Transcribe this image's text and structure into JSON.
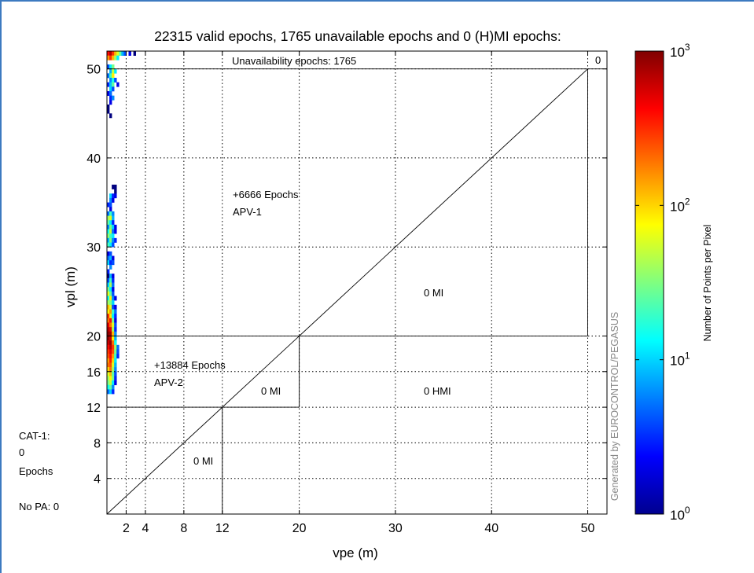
{
  "chart_data": {
    "type": "heatmap",
    "title": "22315 valid epochs, 1765 unavailable epochs and 0 (H)MI epochs:",
    "xlabel": "vpe (m)",
    "ylabel": "vpl (m)",
    "xlim": [
      0,
      52
    ],
    "ylim": [
      0,
      52
    ],
    "x_ticks": [
      2,
      4,
      8,
      12,
      20,
      30,
      40,
      50
    ],
    "y_ticks": [
      4,
      8,
      12,
      16,
      20,
      30,
      40,
      50
    ],
    "x_tick_labels": [
      "2",
      "4",
      "8",
      "12",
      "20",
      "30",
      "40",
      "50"
    ],
    "y_tick_labels": [
      "4",
      "8",
      "12",
      "16",
      "20",
      "30",
      "40",
      "50"
    ],
    "grid": true,
    "grid_style": "dotted",
    "colorbar": {
      "label": "Number of Points per Pixel",
      "scale": "log",
      "range": [
        1,
        1000
      ],
      "tick_values": [
        1,
        10,
        100,
        1000
      ],
      "tick_base": "10",
      "tick_exponents": [
        "0",
        "1",
        "2",
        "3"
      ],
      "colormap": "jet"
    },
    "annotations": {
      "unavailability": "Unavailability epochs: 1765",
      "unavailability_mi_count": "0",
      "apv1_epochs": "+6666 Epochs",
      "apv1_label": "APV-1",
      "apv2_epochs": "+13884 Epochs",
      "apv2_label": "APV-2",
      "mi_apv1": "0 MI",
      "mi_apv2": "0 MI",
      "hmi": "0 HMI",
      "mi_cat1": "0 MI",
      "cat1_label": "CAT-1:",
      "cat1_count": "0",
      "cat1_unit": "Epochs",
      "no_pa": "No PA: 0",
      "watermark": "Generated by EUROCONTROL/PEGASUS"
    },
    "region_boundaries": {
      "diagonal": [
        [
          0,
          0
        ],
        [
          50,
          50
        ]
      ],
      "horizontal_lines": [
        {
          "y": 50,
          "x_to": 52
        },
        {
          "y": 20,
          "x_to": 50
        },
        {
          "y": 12,
          "x_to": 20
        }
      ],
      "vertical_lines": [
        {
          "x": 50,
          "y_from": 20,
          "y_to": 50
        },
        {
          "x": 20,
          "y_from": 12,
          "y_to": 20
        },
        {
          "x": 12,
          "y_from": 0,
          "y_to": 12
        }
      ]
    },
    "heatmap_bin_size": [
      0.25,
      0.5
    ],
    "heatmap_cells": [
      {
        "x": 0.0,
        "y": 51.5,
        "v": 400
      },
      {
        "x": 0.25,
        "y": 51.5,
        "v": 700
      },
      {
        "x": 0.5,
        "y": 51.5,
        "v": 300
      },
      {
        "x": 0.75,
        "y": 51.5,
        "v": 120
      },
      {
        "x": 1.0,
        "y": 51.5,
        "v": 60
      },
      {
        "x": 1.25,
        "y": 51.5,
        "v": 25
      },
      {
        "x": 1.5,
        "y": 51.5,
        "v": 8
      },
      {
        "x": 1.75,
        "y": 51.5,
        "v": 4
      },
      {
        "x": 2.25,
        "y": 51.5,
        "v": 2
      },
      {
        "x": 2.75,
        "y": 51.5,
        "v": 1
      },
      {
        "x": 0.0,
        "y": 51.0,
        "v": 150
      },
      {
        "x": 0.25,
        "y": 51.0,
        "v": 300
      },
      {
        "x": 0.5,
        "y": 51.0,
        "v": 120
      },
      {
        "x": 0.75,
        "y": 51.0,
        "v": 40
      },
      {
        "x": 1.0,
        "y": 51.0,
        "v": 12
      },
      {
        "x": 0.0,
        "y": 50.0,
        "v": 4
      },
      {
        "x": 0.25,
        "y": 50.0,
        "v": 12
      },
      {
        "x": 0.5,
        "y": 50.0,
        "v": 30
      },
      {
        "x": 0.25,
        "y": 49.5,
        "v": 8
      },
      {
        "x": 0.5,
        "y": 49.5,
        "v": 50
      },
      {
        "x": 0.75,
        "y": 49.5,
        "v": 12
      },
      {
        "x": 0.0,
        "y": 49.0,
        "v": 5
      },
      {
        "x": 0.25,
        "y": 49.0,
        "v": 20
      },
      {
        "x": 0.5,
        "y": 49.0,
        "v": 80
      },
      {
        "x": 0.25,
        "y": 48.5,
        "v": 6
      },
      {
        "x": 0.5,
        "y": 48.5,
        "v": 15
      },
      {
        "x": 0.75,
        "y": 48.5,
        "v": 4
      },
      {
        "x": 0.0,
        "y": 48.0,
        "v": 3
      },
      {
        "x": 0.25,
        "y": 48.0,
        "v": 9
      },
      {
        "x": 0.5,
        "y": 48.0,
        "v": 25
      },
      {
        "x": 1.0,
        "y": 48.0,
        "v": 2
      },
      {
        "x": 0.25,
        "y": 47.5,
        "v": 10
      },
      {
        "x": 0.5,
        "y": 47.5,
        "v": 4
      },
      {
        "x": 0.0,
        "y": 47.0,
        "v": 2
      },
      {
        "x": 0.25,
        "y": 47.0,
        "v": 5
      },
      {
        "x": 0.25,
        "y": 46.5,
        "v": 3
      },
      {
        "x": 0.5,
        "y": 46.5,
        "v": 6
      },
      {
        "x": 0.25,
        "y": 46.0,
        "v": 2
      },
      {
        "x": 0.0,
        "y": 45.5,
        "v": 1
      },
      {
        "x": 0.0,
        "y": 45.0,
        "v": 1
      },
      {
        "x": 0.25,
        "y": 44.5,
        "v": 1
      },
      {
        "x": 0.5,
        "y": 36.5,
        "v": 1
      },
      {
        "x": 0.75,
        "y": 36.5,
        "v": 1
      },
      {
        "x": 0.75,
        "y": 36.0,
        "v": 1
      },
      {
        "x": 0.25,
        "y": 35.5,
        "v": 10
      },
      {
        "x": 0.5,
        "y": 35.5,
        "v": 3
      },
      {
        "x": 0.75,
        "y": 35.5,
        "v": 2
      },
      {
        "x": 0.25,
        "y": 35.0,
        "v": 6
      },
      {
        "x": 0.5,
        "y": 35.0,
        "v": 2
      },
      {
        "x": 0.0,
        "y": 34.5,
        "v": 3
      },
      {
        "x": 0.25,
        "y": 34.5,
        "v": 4
      },
      {
        "x": 0.25,
        "y": 34.0,
        "v": 2
      },
      {
        "x": 0.0,
        "y": 33.5,
        "v": 5
      },
      {
        "x": 0.25,
        "y": 33.5,
        "v": 20
      },
      {
        "x": 0.5,
        "y": 33.5,
        "v": 6
      },
      {
        "x": 0.0,
        "y": 33.0,
        "v": 40
      },
      {
        "x": 0.25,
        "y": 33.0,
        "v": 60
      },
      {
        "x": 0.5,
        "y": 33.0,
        "v": 8
      },
      {
        "x": 0.0,
        "y": 32.5,
        "v": 25
      },
      {
        "x": 0.25,
        "y": 32.5,
        "v": 12
      },
      {
        "x": 0.5,
        "y": 32.5,
        "v": 3
      },
      {
        "x": 0.0,
        "y": 32.0,
        "v": 6
      },
      {
        "x": 0.25,
        "y": 32.0,
        "v": 30
      },
      {
        "x": 0.5,
        "y": 32.0,
        "v": 10
      },
      {
        "x": 0.75,
        "y": 32.0,
        "v": 2
      },
      {
        "x": 0.0,
        "y": 31.5,
        "v": 15
      },
      {
        "x": 0.25,
        "y": 31.5,
        "v": 50
      },
      {
        "x": 0.5,
        "y": 31.5,
        "v": 5
      },
      {
        "x": 0.75,
        "y": 31.5,
        "v": 2
      },
      {
        "x": 0.0,
        "y": 31.0,
        "v": 35
      },
      {
        "x": 0.25,
        "y": 31.0,
        "v": 20
      },
      {
        "x": 0.5,
        "y": 31.0,
        "v": 12
      },
      {
        "x": 0.0,
        "y": 30.5,
        "v": 8
      },
      {
        "x": 0.25,
        "y": 30.5,
        "v": 30
      },
      {
        "x": 0.5,
        "y": 30.5,
        "v": 6
      },
      {
        "x": 0.75,
        "y": 30.5,
        "v": 3
      },
      {
        "x": 0.0,
        "y": 30.0,
        "v": 20
      },
      {
        "x": 0.25,
        "y": 30.0,
        "v": 12
      },
      {
        "x": 0.5,
        "y": 30.0,
        "v": 4
      },
      {
        "x": 0.0,
        "y": 29.0,
        "v": 2
      },
      {
        "x": 0.25,
        "y": 29.0,
        "v": 4
      },
      {
        "x": 0.0,
        "y": 28.5,
        "v": 5
      },
      {
        "x": 0.25,
        "y": 28.5,
        "v": 8
      },
      {
        "x": 0.5,
        "y": 28.5,
        "v": 2
      },
      {
        "x": 0.0,
        "y": 28.0,
        "v": 10
      },
      {
        "x": 0.25,
        "y": 28.0,
        "v": 3
      },
      {
        "x": 0.5,
        "y": 28.0,
        "v": 4
      },
      {
        "x": 0.25,
        "y": 27.5,
        "v": 6
      },
      {
        "x": 0.0,
        "y": 27.0,
        "v": 3
      },
      {
        "x": 0.0,
        "y": 26.5,
        "v": 1
      },
      {
        "x": 0.25,
        "y": 26.5,
        "v": 8
      },
      {
        "x": 0.5,
        "y": 26.5,
        "v": 2
      },
      {
        "x": 0.0,
        "y": 26.0,
        "v": 4
      },
      {
        "x": 0.25,
        "y": 26.0,
        "v": 20
      },
      {
        "x": 0.5,
        "y": 26.0,
        "v": 3
      },
      {
        "x": 0.0,
        "y": 25.5,
        "v": 10
      },
      {
        "x": 0.25,
        "y": 25.5,
        "v": 40
      },
      {
        "x": 0.5,
        "y": 25.5,
        "v": 5
      },
      {
        "x": 0.0,
        "y": 25.0,
        "v": 30
      },
      {
        "x": 0.25,
        "y": 25.0,
        "v": 12
      },
      {
        "x": 0.5,
        "y": 25.0,
        "v": 2
      },
      {
        "x": 0.0,
        "y": 24.5,
        "v": 60
      },
      {
        "x": 0.25,
        "y": 24.5,
        "v": 25
      },
      {
        "x": 0.5,
        "y": 24.5,
        "v": 4
      },
      {
        "x": 0.0,
        "y": 24.0,
        "v": 15
      },
      {
        "x": 0.25,
        "y": 24.0,
        "v": 80
      },
      {
        "x": 0.5,
        "y": 24.0,
        "v": 6
      },
      {
        "x": 0.75,
        "y": 24.0,
        "v": 2
      },
      {
        "x": 0.0,
        "y": 23.5,
        "v": 40
      },
      {
        "x": 0.25,
        "y": 23.5,
        "v": 30
      },
      {
        "x": 0.5,
        "y": 23.5,
        "v": 10
      },
      {
        "x": 0.0,
        "y": 23.0,
        "v": 120
      },
      {
        "x": 0.25,
        "y": 23.0,
        "v": 60
      },
      {
        "x": 0.5,
        "y": 23.0,
        "v": 4
      },
      {
        "x": 0.75,
        "y": 23.0,
        "v": 2
      },
      {
        "x": 0.0,
        "y": 22.5,
        "v": 80
      },
      {
        "x": 0.25,
        "y": 22.5,
        "v": 150
      },
      {
        "x": 0.5,
        "y": 22.5,
        "v": 20
      },
      {
        "x": 0.75,
        "y": 22.5,
        "v": 5
      },
      {
        "x": 0.0,
        "y": 22.0,
        "v": 300
      },
      {
        "x": 0.25,
        "y": 22.0,
        "v": 90
      },
      {
        "x": 0.5,
        "y": 22.0,
        "v": 12
      },
      {
        "x": 0.75,
        "y": 22.0,
        "v": 3
      },
      {
        "x": 0.0,
        "y": 21.5,
        "v": 200
      },
      {
        "x": 0.25,
        "y": 21.5,
        "v": 400
      },
      {
        "x": 0.5,
        "y": 21.5,
        "v": 30
      },
      {
        "x": 0.75,
        "y": 21.5,
        "v": 2
      },
      {
        "x": 0.0,
        "y": 21.0,
        "v": 500
      },
      {
        "x": 0.25,
        "y": 21.0,
        "v": 200
      },
      {
        "x": 0.5,
        "y": 21.0,
        "v": 60
      },
      {
        "x": 0.75,
        "y": 21.0,
        "v": 4
      },
      {
        "x": 0.0,
        "y": 20.5,
        "v": 700
      },
      {
        "x": 0.25,
        "y": 20.5,
        "v": 500
      },
      {
        "x": 0.5,
        "y": 20.5,
        "v": 40
      },
      {
        "x": 0.75,
        "y": 20.5,
        "v": 3
      },
      {
        "x": 0.0,
        "y": 20.0,
        "v": 900
      },
      {
        "x": 0.25,
        "y": 20.0,
        "v": 800
      },
      {
        "x": 0.5,
        "y": 20.0,
        "v": 120
      },
      {
        "x": 0.75,
        "y": 20.0,
        "v": 6
      },
      {
        "x": 0.0,
        "y": 19.5,
        "v": 850
      },
      {
        "x": 0.25,
        "y": 19.5,
        "v": 600
      },
      {
        "x": 0.5,
        "y": 19.5,
        "v": 80
      },
      {
        "x": 0.75,
        "y": 19.5,
        "v": 8
      },
      {
        "x": 0.0,
        "y": 19.0,
        "v": 600
      },
      {
        "x": 0.25,
        "y": 19.0,
        "v": 900
      },
      {
        "x": 0.5,
        "y": 19.0,
        "v": 200
      },
      {
        "x": 0.75,
        "y": 19.0,
        "v": 15
      },
      {
        "x": 0.0,
        "y": 18.5,
        "v": 400
      },
      {
        "x": 0.25,
        "y": 18.5,
        "v": 700
      },
      {
        "x": 0.5,
        "y": 18.5,
        "v": 300
      },
      {
        "x": 0.75,
        "y": 18.5,
        "v": 40
      },
      {
        "x": 1.0,
        "y": 18.5,
        "v": 5
      },
      {
        "x": 0.0,
        "y": 18.0,
        "v": 300
      },
      {
        "x": 0.25,
        "y": 18.0,
        "v": 500
      },
      {
        "x": 0.5,
        "y": 18.0,
        "v": 250
      },
      {
        "x": 0.75,
        "y": 18.0,
        "v": 30
      },
      {
        "x": 1.0,
        "y": 18.0,
        "v": 4
      },
      {
        "x": 0.0,
        "y": 17.5,
        "v": 250
      },
      {
        "x": 0.25,
        "y": 17.5,
        "v": 400
      },
      {
        "x": 0.5,
        "y": 17.5,
        "v": 150
      },
      {
        "x": 0.75,
        "y": 17.5,
        "v": 20
      },
      {
        "x": 1.0,
        "y": 17.5,
        "v": 3
      },
      {
        "x": 0.0,
        "y": 17.0,
        "v": 150
      },
      {
        "x": 0.25,
        "y": 17.0,
        "v": 350
      },
      {
        "x": 0.5,
        "y": 17.0,
        "v": 100
      },
      {
        "x": 0.75,
        "y": 17.0,
        "v": 12
      },
      {
        "x": 0.0,
        "y": 16.5,
        "v": 200
      },
      {
        "x": 0.25,
        "y": 16.5,
        "v": 250
      },
      {
        "x": 0.5,
        "y": 16.5,
        "v": 60
      },
      {
        "x": 0.75,
        "y": 16.5,
        "v": 8
      },
      {
        "x": 0.0,
        "y": 16.0,
        "v": 100
      },
      {
        "x": 0.25,
        "y": 16.0,
        "v": 200
      },
      {
        "x": 0.5,
        "y": 16.0,
        "v": 40
      },
      {
        "x": 0.75,
        "y": 16.0,
        "v": 6
      },
      {
        "x": 0.0,
        "y": 15.5,
        "v": 60
      },
      {
        "x": 0.25,
        "y": 15.5,
        "v": 120
      },
      {
        "x": 0.5,
        "y": 15.5,
        "v": 25
      },
      {
        "x": 0.75,
        "y": 15.5,
        "v": 4
      },
      {
        "x": 0.0,
        "y": 15.0,
        "v": 40
      },
      {
        "x": 0.25,
        "y": 15.0,
        "v": 80
      },
      {
        "x": 0.5,
        "y": 15.0,
        "v": 30
      },
      {
        "x": 0.75,
        "y": 15.0,
        "v": 3
      },
      {
        "x": 0.0,
        "y": 14.5,
        "v": 30
      },
      {
        "x": 0.25,
        "y": 14.5,
        "v": 50
      },
      {
        "x": 0.5,
        "y": 14.5,
        "v": 12
      },
      {
        "x": 0.75,
        "y": 14.5,
        "v": 2
      },
      {
        "x": 0.0,
        "y": 14.0,
        "v": 15
      },
      {
        "x": 0.25,
        "y": 14.0,
        "v": 25
      },
      {
        "x": 0.5,
        "y": 14.0,
        "v": 6
      },
      {
        "x": 0.0,
        "y": 13.5,
        "v": 5
      },
      {
        "x": 0.25,
        "y": 13.5,
        "v": 10
      },
      {
        "x": 0.5,
        "y": 13.5,
        "v": 3
      }
    ]
  }
}
